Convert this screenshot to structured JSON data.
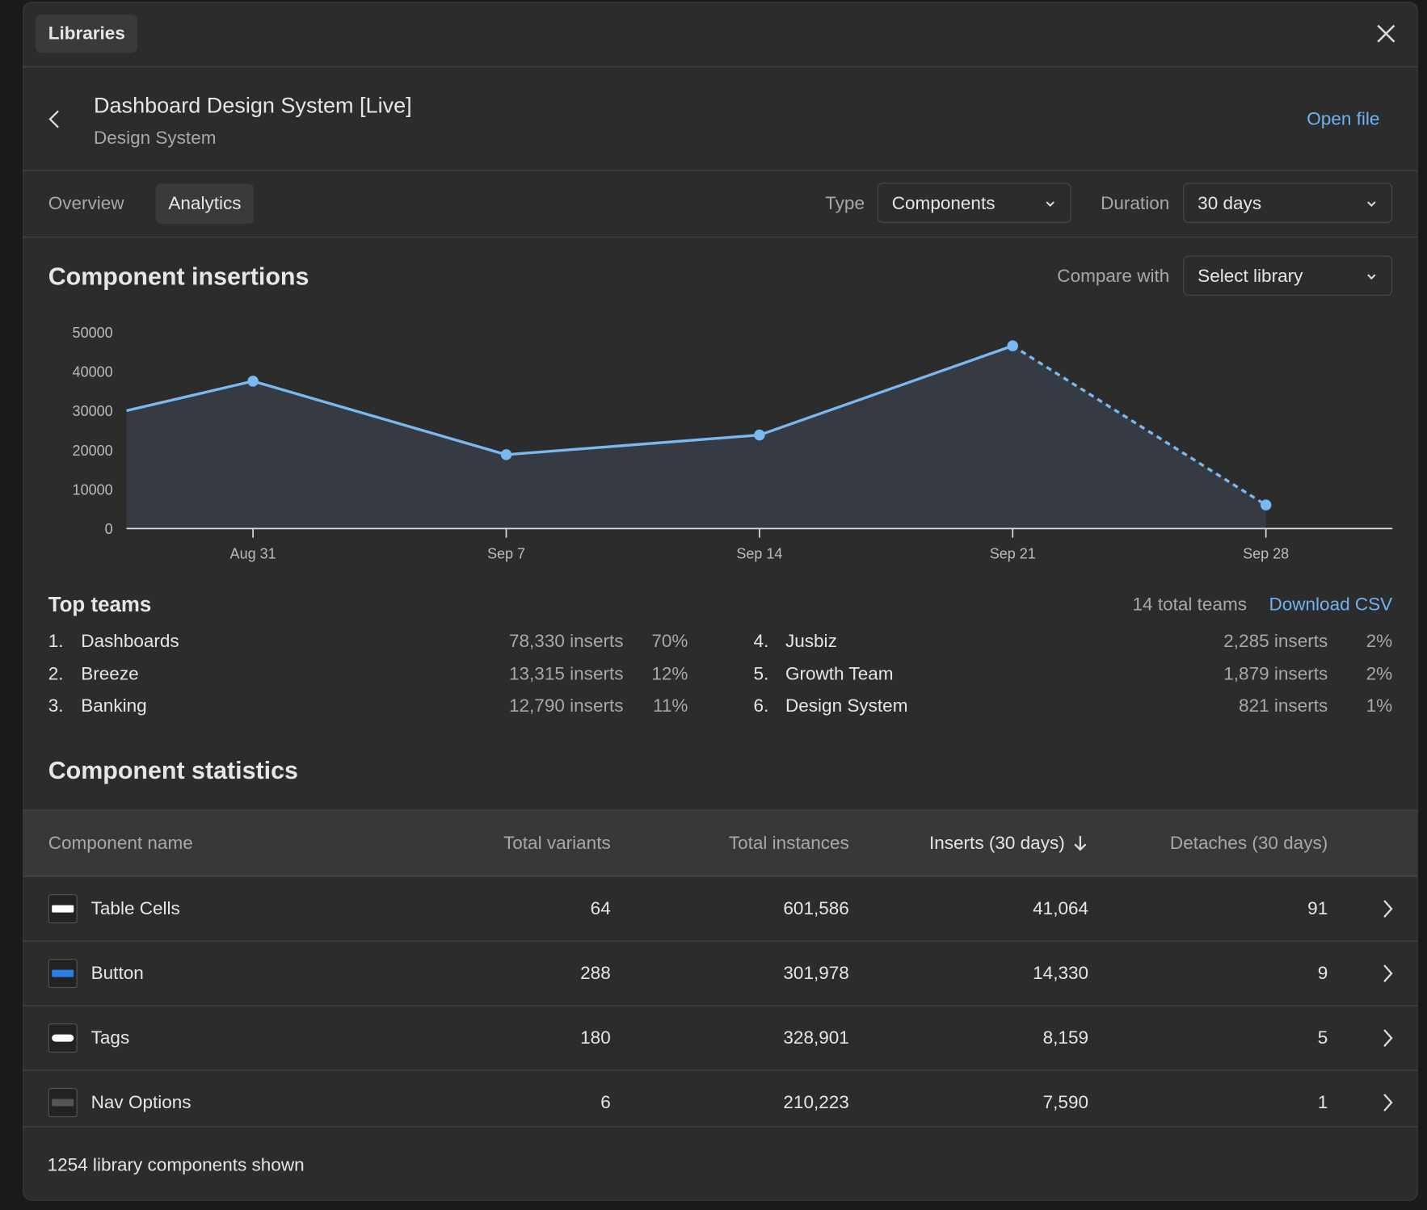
{
  "header": {
    "tab_label": "Libraries",
    "title": "Dashboard Design System [Live]",
    "subtitle": "Design System",
    "open_file": "Open file"
  },
  "tabs": [
    "Overview",
    "Analytics"
  ],
  "filters": {
    "type_label": "Type",
    "type_value": "Components",
    "duration_label": "Duration",
    "duration_value": "30 days",
    "compare_label": "Compare with",
    "compare_value": "Select library"
  },
  "chart_data": {
    "type": "line",
    "title": "Component insertions",
    "categories": [
      null,
      "Aug 31",
      "Sep 7",
      "Sep 14",
      "Sep 21",
      "Sep 28"
    ],
    "values": [
      30000,
      37500,
      18800,
      23800,
      46500,
      6000
    ],
    "color": "#79b8f0",
    "area": true,
    "dashed_last_segment": true,
    "ylim": [
      0,
      50000
    ],
    "yticks": [
      0,
      10000,
      20000,
      30000,
      40000,
      50000
    ]
  },
  "top_teams": {
    "title": "Top teams",
    "total": "14 total teams",
    "download": "Download CSV",
    "rows": [
      {
        "rank": "1.",
        "name": "Dashboards",
        "inserts": "78,330 inserts",
        "share": "70%"
      },
      {
        "rank": "2.",
        "name": "Breeze",
        "inserts": "13,315 inserts",
        "share": "12%"
      },
      {
        "rank": "3.",
        "name": "Banking",
        "inserts": "12,790 inserts",
        "share": "11%"
      },
      {
        "rank": "4.",
        "name": "Jusbiz",
        "inserts": "2,285 inserts",
        "share": "2%"
      },
      {
        "rank": "5.",
        "name": "Growth Team",
        "inserts": "1,879 inserts",
        "share": "2%"
      },
      {
        "rank": "6.",
        "name": "Design System",
        "inserts": "821 inserts",
        "share": "1%"
      }
    ]
  },
  "statistics": {
    "title": "Component statistics",
    "columns": [
      "Component name",
      "Total variants",
      "Total instances",
      "Inserts (30 days)",
      "Detaches (30 days)"
    ],
    "rows": [
      [
        "Table Cells",
        "64",
        "601,586",
        "41,064",
        "91"
      ],
      [
        "Button",
        "288",
        "301,978",
        "14,330",
        "9"
      ],
      [
        "Tags",
        "180",
        "328,901",
        "8,159",
        "5"
      ],
      [
        "Nav Options",
        "6",
        "210,223",
        "7,590",
        "1"
      ]
    ],
    "footer": "1254 library components shown"
  }
}
